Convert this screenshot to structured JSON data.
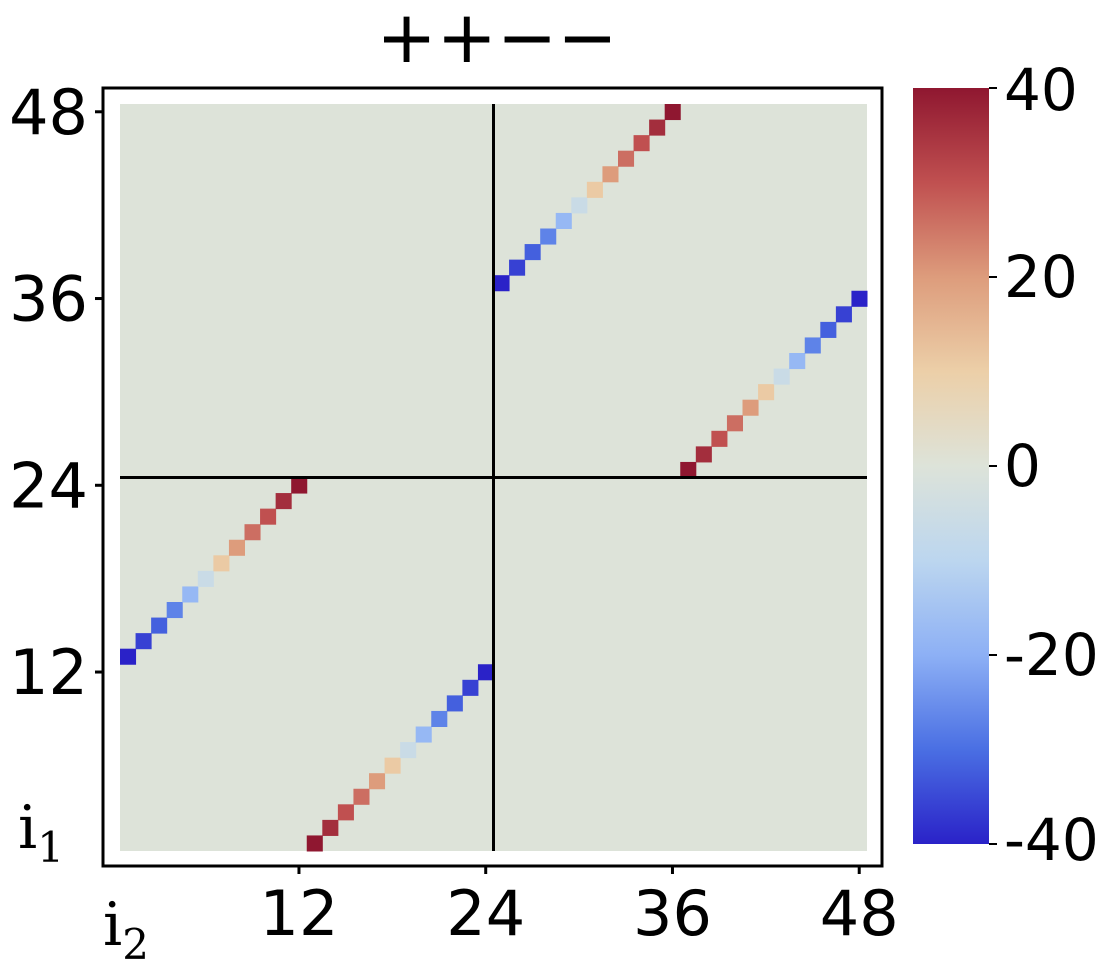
{
  "chart_data": {
    "type": "heatmap",
    "title": "++−−",
    "xlabel": "i",
    "xlabel_sub": "2",
    "ylabel": "i",
    "ylabel_sub": "1",
    "grid_size": 48,
    "xlim": [
      1,
      48
    ],
    "ylim": [
      1,
      48
    ],
    "x_ticks": [
      12,
      24,
      36,
      48
    ],
    "y_ticks": [
      12,
      24,
      36,
      48
    ],
    "divider_lines": {
      "x": 24.5,
      "y": 24.5
    },
    "background_value": 0,
    "colormap": "coolwarm",
    "colorbar": {
      "min": -40,
      "max": 40,
      "ticks": [
        40,
        20,
        0,
        -20,
        -40
      ],
      "tick_labels": [
        "40",
        "20",
        "0",
        "-20",
        "-40"
      ]
    },
    "colormap_stops": [
      {
        "v": -40,
        "color": "#2a22c8"
      },
      {
        "v": -30,
        "color": "#4a6fe3"
      },
      {
        "v": -20,
        "color": "#8db0f5"
      },
      {
        "v": -10,
        "color": "#bcd6ef"
      },
      {
        "v": 0,
        "color": "#dde3d9"
      },
      {
        "v": 10,
        "color": "#eccfa8"
      },
      {
        "v": 20,
        "color": "#dd9c7c"
      },
      {
        "v": 30,
        "color": "#c05050"
      },
      {
        "v": 40,
        "color": "#8f1730"
      }
    ],
    "cells": [
      {
        "i2": 13,
        "i1": 1,
        "value": 40
      },
      {
        "i2": 14,
        "i1": 2,
        "value": 36
      },
      {
        "i2": 15,
        "i1": 3,
        "value": 30
      },
      {
        "i2": 16,
        "i1": 4,
        "value": 26
      },
      {
        "i2": 17,
        "i1": 5,
        "value": 20
      },
      {
        "i2": 18,
        "i1": 6,
        "value": 11
      },
      {
        "i2": 19,
        "i1": 7,
        "value": -6
      },
      {
        "i2": 20,
        "i1": 8,
        "value": -18
      },
      {
        "i2": 21,
        "i1": 9,
        "value": -27
      },
      {
        "i2": 22,
        "i1": 10,
        "value": -32
      },
      {
        "i2": 23,
        "i1": 11,
        "value": -36
      },
      {
        "i2": 24,
        "i1": 12,
        "value": -40
      },
      {
        "i2": 1,
        "i1": 13,
        "value": -40
      },
      {
        "i2": 2,
        "i1": 14,
        "value": -36
      },
      {
        "i2": 3,
        "i1": 15,
        "value": -32
      },
      {
        "i2": 4,
        "i1": 16,
        "value": -27
      },
      {
        "i2": 5,
        "i1": 17,
        "value": -18
      },
      {
        "i2": 6,
        "i1": 18,
        "value": -6
      },
      {
        "i2": 7,
        "i1": 19,
        "value": 11
      },
      {
        "i2": 8,
        "i1": 20,
        "value": 20
      },
      {
        "i2": 9,
        "i1": 21,
        "value": 26
      },
      {
        "i2": 10,
        "i1": 22,
        "value": 30
      },
      {
        "i2": 11,
        "i1": 23,
        "value": 36
      },
      {
        "i2": 12,
        "i1": 24,
        "value": 40
      },
      {
        "i2": 37,
        "i1": 25,
        "value": 40
      },
      {
        "i2": 38,
        "i1": 26,
        "value": 36
      },
      {
        "i2": 39,
        "i1": 27,
        "value": 30
      },
      {
        "i2": 40,
        "i1": 28,
        "value": 26
      },
      {
        "i2": 41,
        "i1": 29,
        "value": 20
      },
      {
        "i2": 42,
        "i1": 30,
        "value": 11
      },
      {
        "i2": 43,
        "i1": 31,
        "value": -6
      },
      {
        "i2": 44,
        "i1": 32,
        "value": -18
      },
      {
        "i2": 45,
        "i1": 33,
        "value": -27
      },
      {
        "i2": 46,
        "i1": 34,
        "value": -32
      },
      {
        "i2": 47,
        "i1": 35,
        "value": -36
      },
      {
        "i2": 48,
        "i1": 36,
        "value": -40
      },
      {
        "i2": 25,
        "i1": 37,
        "value": -40
      },
      {
        "i2": 26,
        "i1": 38,
        "value": -36
      },
      {
        "i2": 27,
        "i1": 39,
        "value": -32
      },
      {
        "i2": 28,
        "i1": 40,
        "value": -27
      },
      {
        "i2": 29,
        "i1": 41,
        "value": -18
      },
      {
        "i2": 30,
        "i1": 42,
        "value": -6
      },
      {
        "i2": 31,
        "i1": 43,
        "value": 11
      },
      {
        "i2": 32,
        "i1": 44,
        "value": 20
      },
      {
        "i2": 33,
        "i1": 45,
        "value": 26
      },
      {
        "i2": 34,
        "i1": 46,
        "value": 30
      },
      {
        "i2": 35,
        "i1": 47,
        "value": 36
      },
      {
        "i2": 36,
        "i1": 48,
        "value": 40
      }
    ]
  }
}
